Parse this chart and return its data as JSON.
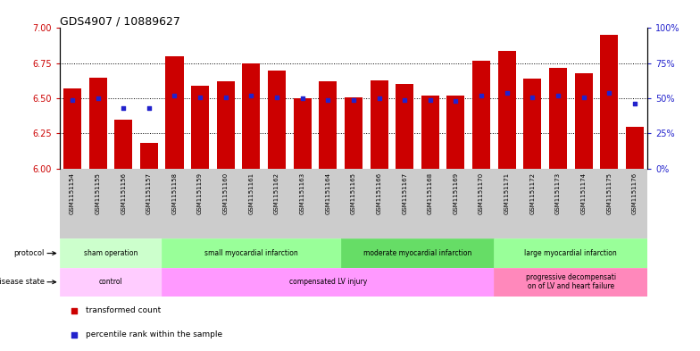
{
  "title": "GDS4907 / 10889627",
  "samples": [
    "GSM1151154",
    "GSM1151155",
    "GSM1151156",
    "GSM1151157",
    "GSM1151158",
    "GSM1151159",
    "GSM1151160",
    "GSM1151161",
    "GSM1151162",
    "GSM1151163",
    "GSM1151164",
    "GSM1151165",
    "GSM1151166",
    "GSM1151167",
    "GSM1151168",
    "GSM1151169",
    "GSM1151170",
    "GSM1151171",
    "GSM1151172",
    "GSM1151173",
    "GSM1151174",
    "GSM1151175",
    "GSM1151176"
  ],
  "transformed_count": [
    6.57,
    6.65,
    6.35,
    6.18,
    6.8,
    6.59,
    6.62,
    6.75,
    6.7,
    6.5,
    6.62,
    6.51,
    6.63,
    6.6,
    6.52,
    6.52,
    6.77,
    6.84,
    6.64,
    6.72,
    6.68,
    6.95,
    6.3
  ],
  "percentile_rank": [
    49,
    50,
    43,
    43,
    52,
    51,
    51,
    52,
    51,
    50,
    49,
    49,
    50,
    49,
    49,
    48,
    52,
    54,
    51,
    52,
    51,
    54,
    46
  ],
  "ylim_left": [
    6.0,
    7.0
  ],
  "ylim_right": [
    0,
    100
  ],
  "yticks_left": [
    6.0,
    6.25,
    6.5,
    6.75,
    7.0
  ],
  "yticks_right": [
    0,
    25,
    50,
    75,
    100
  ],
  "ytick_labels_right": [
    "0%",
    "25%",
    "50%",
    "75%",
    "100%"
  ],
  "bar_color": "#cc0000",
  "dot_color": "#2222cc",
  "bar_width": 0.7,
  "protocol_groups": [
    {
      "label": "sham operation",
      "start": 0,
      "end": 3,
      "color": "#ccffcc"
    },
    {
      "label": "small myocardial infarction",
      "start": 4,
      "end": 10,
      "color": "#99ff99"
    },
    {
      "label": "moderate myocardial infarction",
      "start": 11,
      "end": 16,
      "color": "#66dd66"
    },
    {
      "label": "large myocardial infarction",
      "start": 17,
      "end": 22,
      "color": "#99ff99"
    }
  ],
  "disease_groups": [
    {
      "label": "control",
      "start": 0,
      "end": 3,
      "color": "#ffccff"
    },
    {
      "label": "compensated LV injury",
      "start": 4,
      "end": 16,
      "color": "#ff99ff"
    },
    {
      "label": "progressive decompensati\non of LV and heart failure",
      "start": 17,
      "end": 22,
      "color": "#ff88bb"
    }
  ],
  "grid_values": [
    6.25,
    6.5,
    6.75
  ],
  "xtick_bg_color": "#cccccc"
}
